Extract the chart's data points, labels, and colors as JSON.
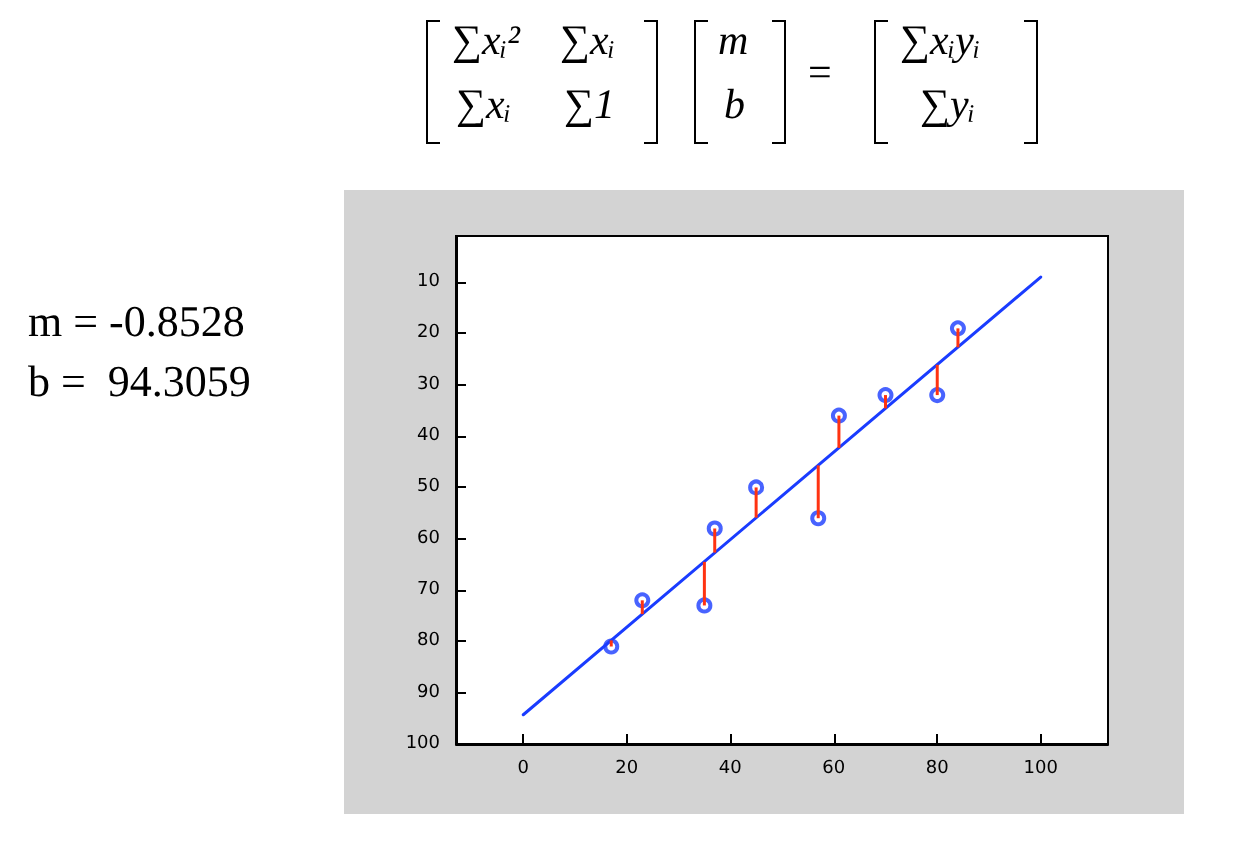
{
  "chart_data": {
    "type": "scatter",
    "annotations": [
      "∑xᵢ²",
      "∑xᵢ",
      "∑xᵢ",
      "∑1",
      "m",
      "b",
      "=",
      "∑xᵢyᵢ",
      "∑yᵢ",
      "m = -0.8528",
      "b =  94.3059"
    ],
    "xlim": [
      -13,
      113
    ],
    "xticks": [
      0,
      20,
      40,
      60,
      80,
      100
    ],
    "ylim": [
      100,
      1
    ],
    "yticks": [
      10,
      20,
      30,
      40,
      50,
      60,
      70,
      80,
      90,
      100
    ],
    "marker": "circle",
    "series": [
      {
        "type": "line",
        "color": "#1a3cff",
        "marker": "none",
        "line_style": "solid",
        "x": [
          0,
          100
        ],
        "values": [
          94.3,
          9.0
        ]
      },
      {
        "type": "scatter",
        "color": "#1a3cff",
        "x": [
          17,
          23,
          35,
          37,
          45,
          57,
          61,
          70,
          80,
          84
        ],
        "values": [
          81,
          72,
          73,
          58,
          50,
          56,
          36,
          32,
          32,
          19
        ],
        "errors": [
          [
            79.8,
            81
          ],
          [
            72,
            74.7
          ],
          [
            64.5,
            73
          ],
          [
            58,
            62.7
          ],
          [
            50,
            55.9
          ],
          [
            45.7,
            56
          ],
          [
            36,
            42.3
          ],
          [
            32,
            34.6
          ],
          [
            26.1,
            32
          ],
          [
            19,
            22.7
          ]
        ]
      }
    ]
  }
}
